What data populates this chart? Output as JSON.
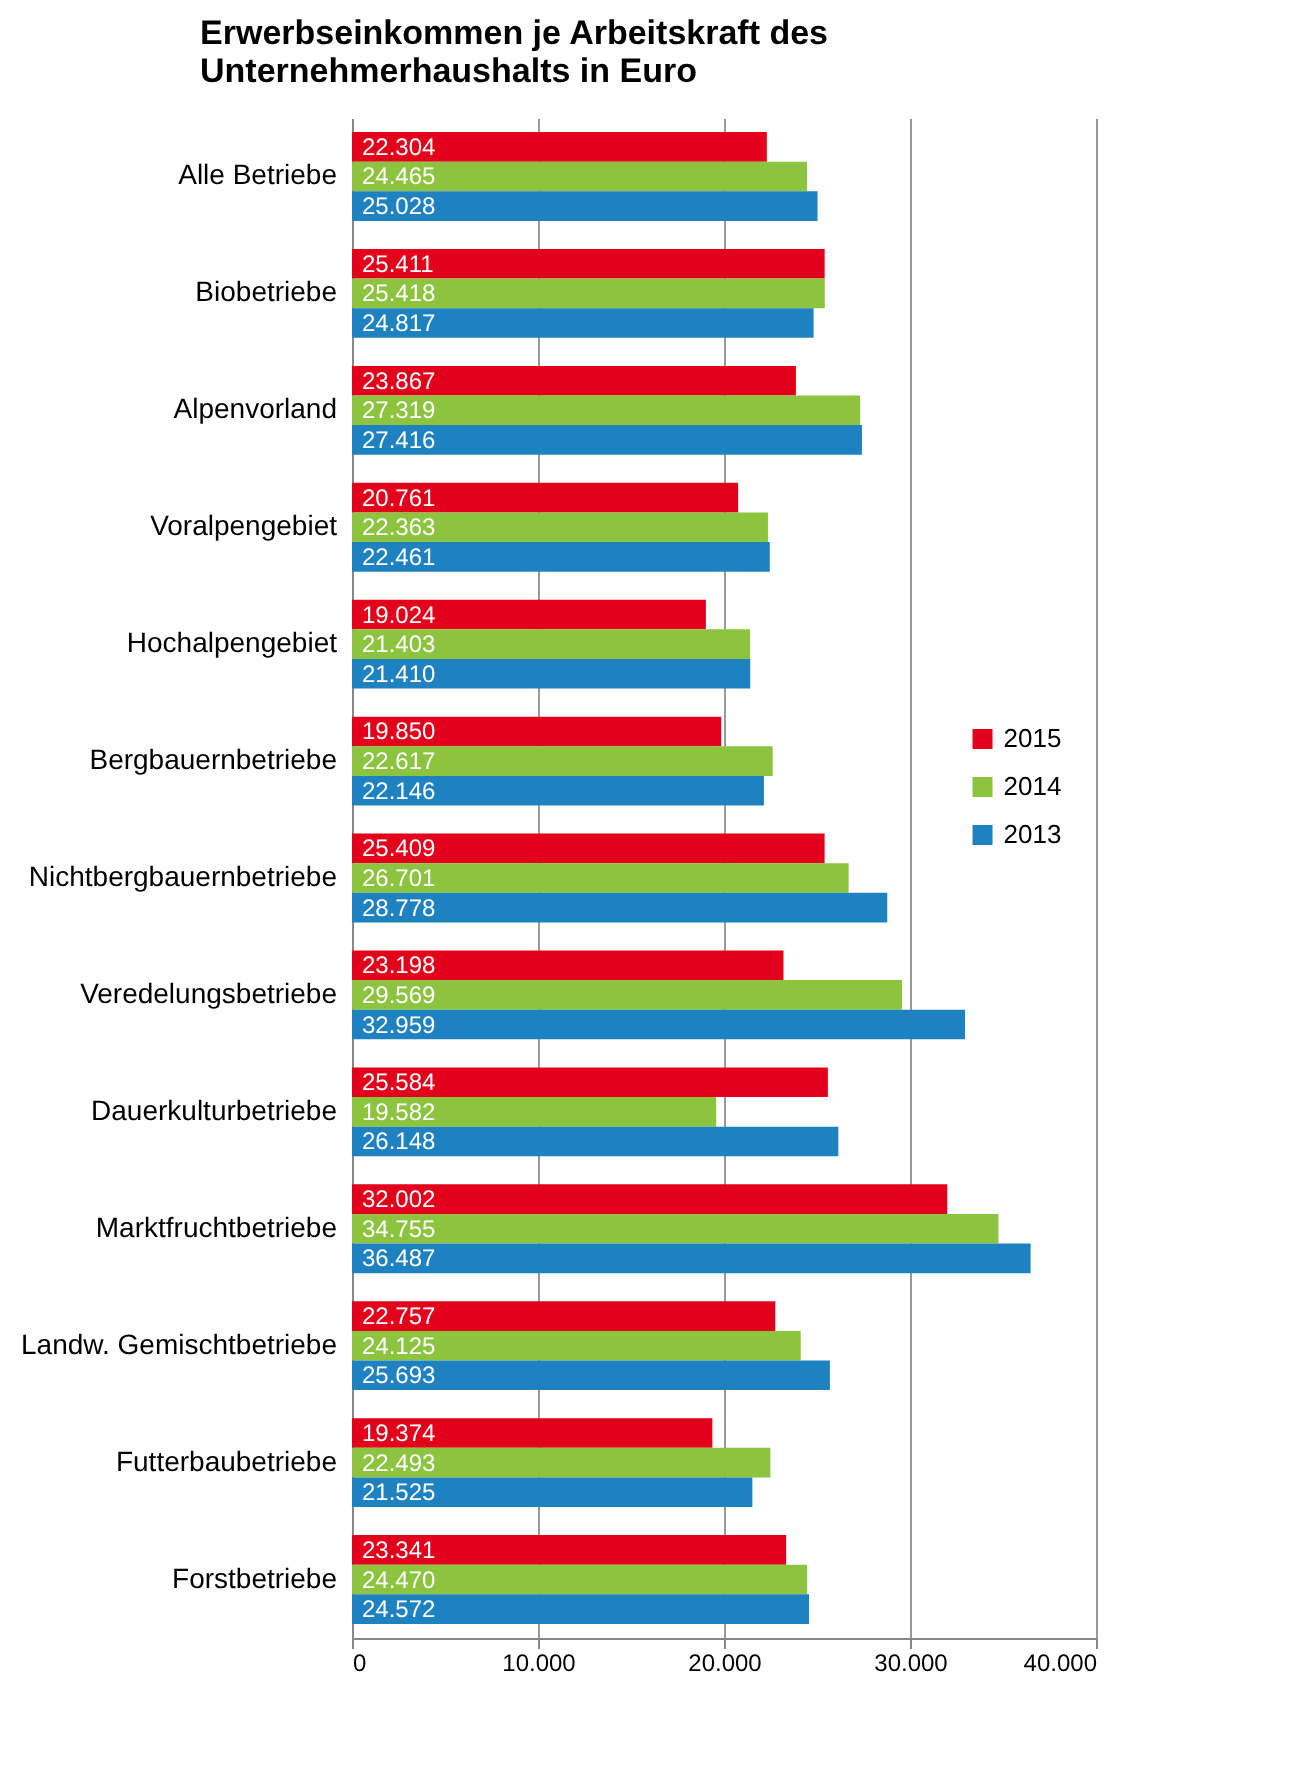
{
  "chart_data": {
    "type": "bar",
    "orientation": "horizontal",
    "title": "Erwerbseinkommen  je Arbeitskraft des\nUnternehmerhaushalts in Euro",
    "categories": [
      "Alle Betriebe",
      "Biobetriebe",
      "Alpenvorland",
      "Voralpengebiet",
      "Hochalpengebiet",
      "Bergbauernbetriebe",
      "Nichtbergbauernbetriebe",
      "Veredelungsbetriebe",
      "Dauerkulturbetriebe",
      "Marktfruchtbetriebe",
      "Landw. Gemischtbetriebe",
      "Futterbaubetriebe",
      "Forstbetriebe"
    ],
    "series": [
      {
        "name": "2015",
        "color": "#e3001b",
        "values": [
          22304,
          25411,
          23867,
          20761,
          19024,
          19850,
          25409,
          23198,
          25584,
          32002,
          22757,
          19374,
          23341
        ],
        "value_labels": [
          "22.304",
          "25.411",
          "23.867",
          "20.761",
          "19.024",
          "19.850",
          "25.409",
          "23.198",
          "25.584",
          "32.002",
          "22.757",
          "19.374",
          "23.341"
        ]
      },
      {
        "name": "2014",
        "color": "#8cc43f",
        "values": [
          24465,
          25418,
          27319,
          22363,
          21403,
          22617,
          26701,
          29569,
          19582,
          34755,
          24125,
          22493,
          24470
        ],
        "value_labels": [
          "24.465",
          "25.418",
          "27.319",
          "22.363",
          "21.403",
          "22.617",
          "26.701",
          "29.569",
          "19.582",
          "34.755",
          "24.125",
          "22.493",
          "24.470"
        ]
      },
      {
        "name": "2013",
        "color": "#1f82c0",
        "values": [
          25028,
          24817,
          27416,
          22461,
          21410,
          22146,
          28778,
          32959,
          26148,
          36487,
          25693,
          21525,
          24572
        ],
        "value_labels": [
          "25.028",
          "24.817",
          "27.416",
          "22.461",
          "21.410",
          "22.146",
          "28.778",
          "32.959",
          "26.148",
          "36.487",
          "25.693",
          "21.525",
          "24.572"
        ]
      }
    ],
    "xlim": [
      0,
      40000
    ],
    "xticks": [
      0,
      {
        "value": 10000,
        "label": "10.000"
      },
      {
        "value": 20000,
        "label": "20.000"
      },
      {
        "value": 30000,
        "label": "30.000"
      },
      {
        "value": 40000,
        "label": "40.000"
      }
    ],
    "grid": "x",
    "legend": "right"
  }
}
